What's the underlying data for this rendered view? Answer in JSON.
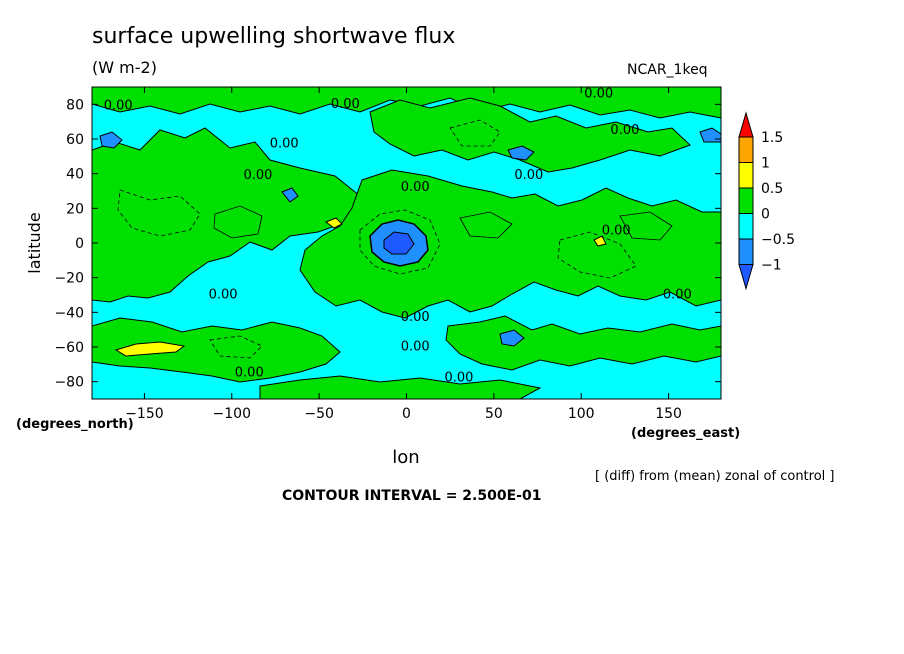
{
  "chart_data": {
    "type": "heatmap",
    "title": "surface upwelling shortwave flux",
    "units": "(W m-2)",
    "model_label": "NCAR_1keq",
    "xlabel": "lon",
    "ylabel": "latitude",
    "x_unit_label": "(degrees_east)",
    "y_unit_label": "(degrees_north)",
    "xlim": [
      -180,
      180
    ],
    "ylim": [
      -90,
      90
    ],
    "x_ticks": [
      -150,
      -100,
      -50,
      0,
      50,
      100,
      150
    ],
    "x_tick_labels": [
      "−150",
      "−100",
      "−50",
      "0",
      "50",
      "100",
      "150"
    ],
    "y_ticks": [
      80,
      60,
      40,
      20,
      0,
      -20,
      -40,
      -60,
      -80
    ],
    "y_tick_labels": [
      "80",
      "60",
      "40",
      "20",
      "0",
      "−20",
      "−40",
      "−60",
      "−80"
    ],
    "footnote": "[ (diff) from (mean) zonal of control ]",
    "contour_interval_text": "CONTOUR INTERVAL = 2.500E-01",
    "contour_interval": 0.25,
    "contour_labels": [
      {
        "lon": -165,
        "lat": 77,
        "text": "0.00"
      },
      {
        "lon": -35,
        "lat": 78,
        "text": "0.00"
      },
      {
        "lon": 110,
        "lat": 84,
        "text": "0.00"
      },
      {
        "lon": 125,
        "lat": 63,
        "text": "0.00"
      },
      {
        "lon": -70,
        "lat": 55,
        "text": "0.00"
      },
      {
        "lon": -85,
        "lat": 37,
        "text": "0.00"
      },
      {
        "lon": 70,
        "lat": 37,
        "text": "0.00"
      },
      {
        "lon": 5,
        "lat": 30,
        "text": "0.00"
      },
      {
        "lon": 120,
        "lat": 5,
        "text": "0.00"
      },
      {
        "lon": -105,
        "lat": -32,
        "text": "0.00"
      },
      {
        "lon": 155,
        "lat": -32,
        "text": "0.00"
      },
      {
        "lon": 5,
        "lat": -45,
        "text": "0.00"
      },
      {
        "lon": 5,
        "lat": -62,
        "text": "0.00"
      },
      {
        "lon": -90,
        "lat": -77,
        "text": "0.00"
      },
      {
        "lon": 30,
        "lat": -80,
        "text": "0.00"
      }
    ],
    "colorbar": {
      "levels": [
        "1.5",
        "1",
        "0.5",
        "0",
        "−0.5",
        "−1"
      ],
      "colors": [
        "#ff0000",
        "#ffa500",
        "#ffff00",
        "#00e000",
        "#00ffff",
        "#2090ff",
        "#1e5aff"
      ]
    },
    "features": {
      "background_level": "-0.5 to 0",
      "positive_bands": "0 to 0.5 across tropics and mid-latitudes",
      "strong_negative_center": {
        "lon": -3,
        "lat": 0,
        "value": "< -1"
      },
      "positive_maxima": [
        {
          "lon": -140,
          "lat": -60,
          "value": "0.5 to 1"
        },
        {
          "lon": -40,
          "lat": 10,
          "value": "0.5 to 1"
        },
        {
          "lon": 105,
          "lat": 0,
          "value": "0.5 to 1"
        }
      ]
    }
  }
}
